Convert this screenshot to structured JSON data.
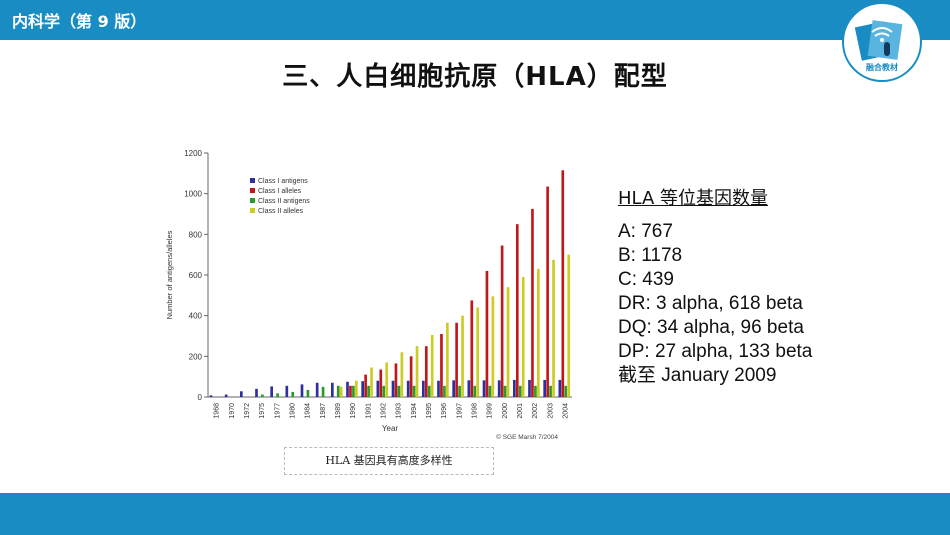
{
  "header": {
    "book_title": "内科学（第 9 版）",
    "logo_text": "融合教材",
    "brand_color": "#1a8cc4"
  },
  "slide": {
    "title": "三、人白细胞抗原（HLA）配型"
  },
  "caption": "HLA 基因具有高度多样性",
  "info": {
    "heading": "HLA 等位基因数量",
    "lines": [
      "A: 767",
      "B: 1178",
      "C: 439",
      "DR: 3 alpha, 618 beta",
      "DQ: 34 alpha, 96 beta",
      "DP: 27 alpha, 133 beta",
      "截至 January 2009"
    ]
  },
  "chart_data": {
    "type": "bar",
    "title": "",
    "xlabel": "Year",
    "ylabel": "Number of antigens/alleles",
    "ylim": [
      0,
      1200
    ],
    "yticks": [
      0,
      200,
      400,
      600,
      800,
      1000,
      1200
    ],
    "grid": false,
    "legend_position": "top-left",
    "credit": "© SGE Marsh 7/2004",
    "categories": [
      "1968",
      "1970",
      "1972",
      "1975",
      "1977",
      "1980",
      "1984",
      "1987",
      "1989",
      "1990",
      "1991",
      "1992",
      "1993",
      "1994",
      "1995",
      "1996",
      "1997",
      "1998",
      "1999",
      "2000",
      "2001",
      "2002",
      "2003",
      "2004"
    ],
    "series": [
      {
        "name": "Class I antigens",
        "color": "#2e2e9c",
        "values": [
          8,
          12,
          28,
          40,
          52,
          55,
          62,
          70,
          70,
          75,
          78,
          80,
          80,
          80,
          80,
          80,
          82,
          82,
          82,
          82,
          84,
          84,
          84,
          84
        ]
      },
      {
        "name": "Class I alleles",
        "color": "#c01818",
        "values": [
          0,
          0,
          0,
          0,
          0,
          0,
          0,
          0,
          0,
          55,
          110,
          135,
          165,
          200,
          250,
          310,
          365,
          475,
          620,
          745,
          850,
          925,
          1035,
          1115
        ]
      },
      {
        "name": "Class II antigens",
        "color": "#2a9a2a",
        "values": [
          0,
          0,
          0,
          12,
          18,
          25,
          35,
          50,
          55,
          55,
          55,
          55,
          55,
          55,
          55,
          55,
          55,
          55,
          55,
          55,
          55,
          55,
          55,
          55
        ]
      },
      {
        "name": "Class II alleles",
        "color": "#cccc22",
        "values": [
          0,
          0,
          0,
          0,
          0,
          0,
          0,
          0,
          50,
          80,
          145,
          170,
          220,
          250,
          305,
          365,
          400,
          440,
          495,
          540,
          590,
          630,
          675,
          700
        ]
      }
    ]
  }
}
